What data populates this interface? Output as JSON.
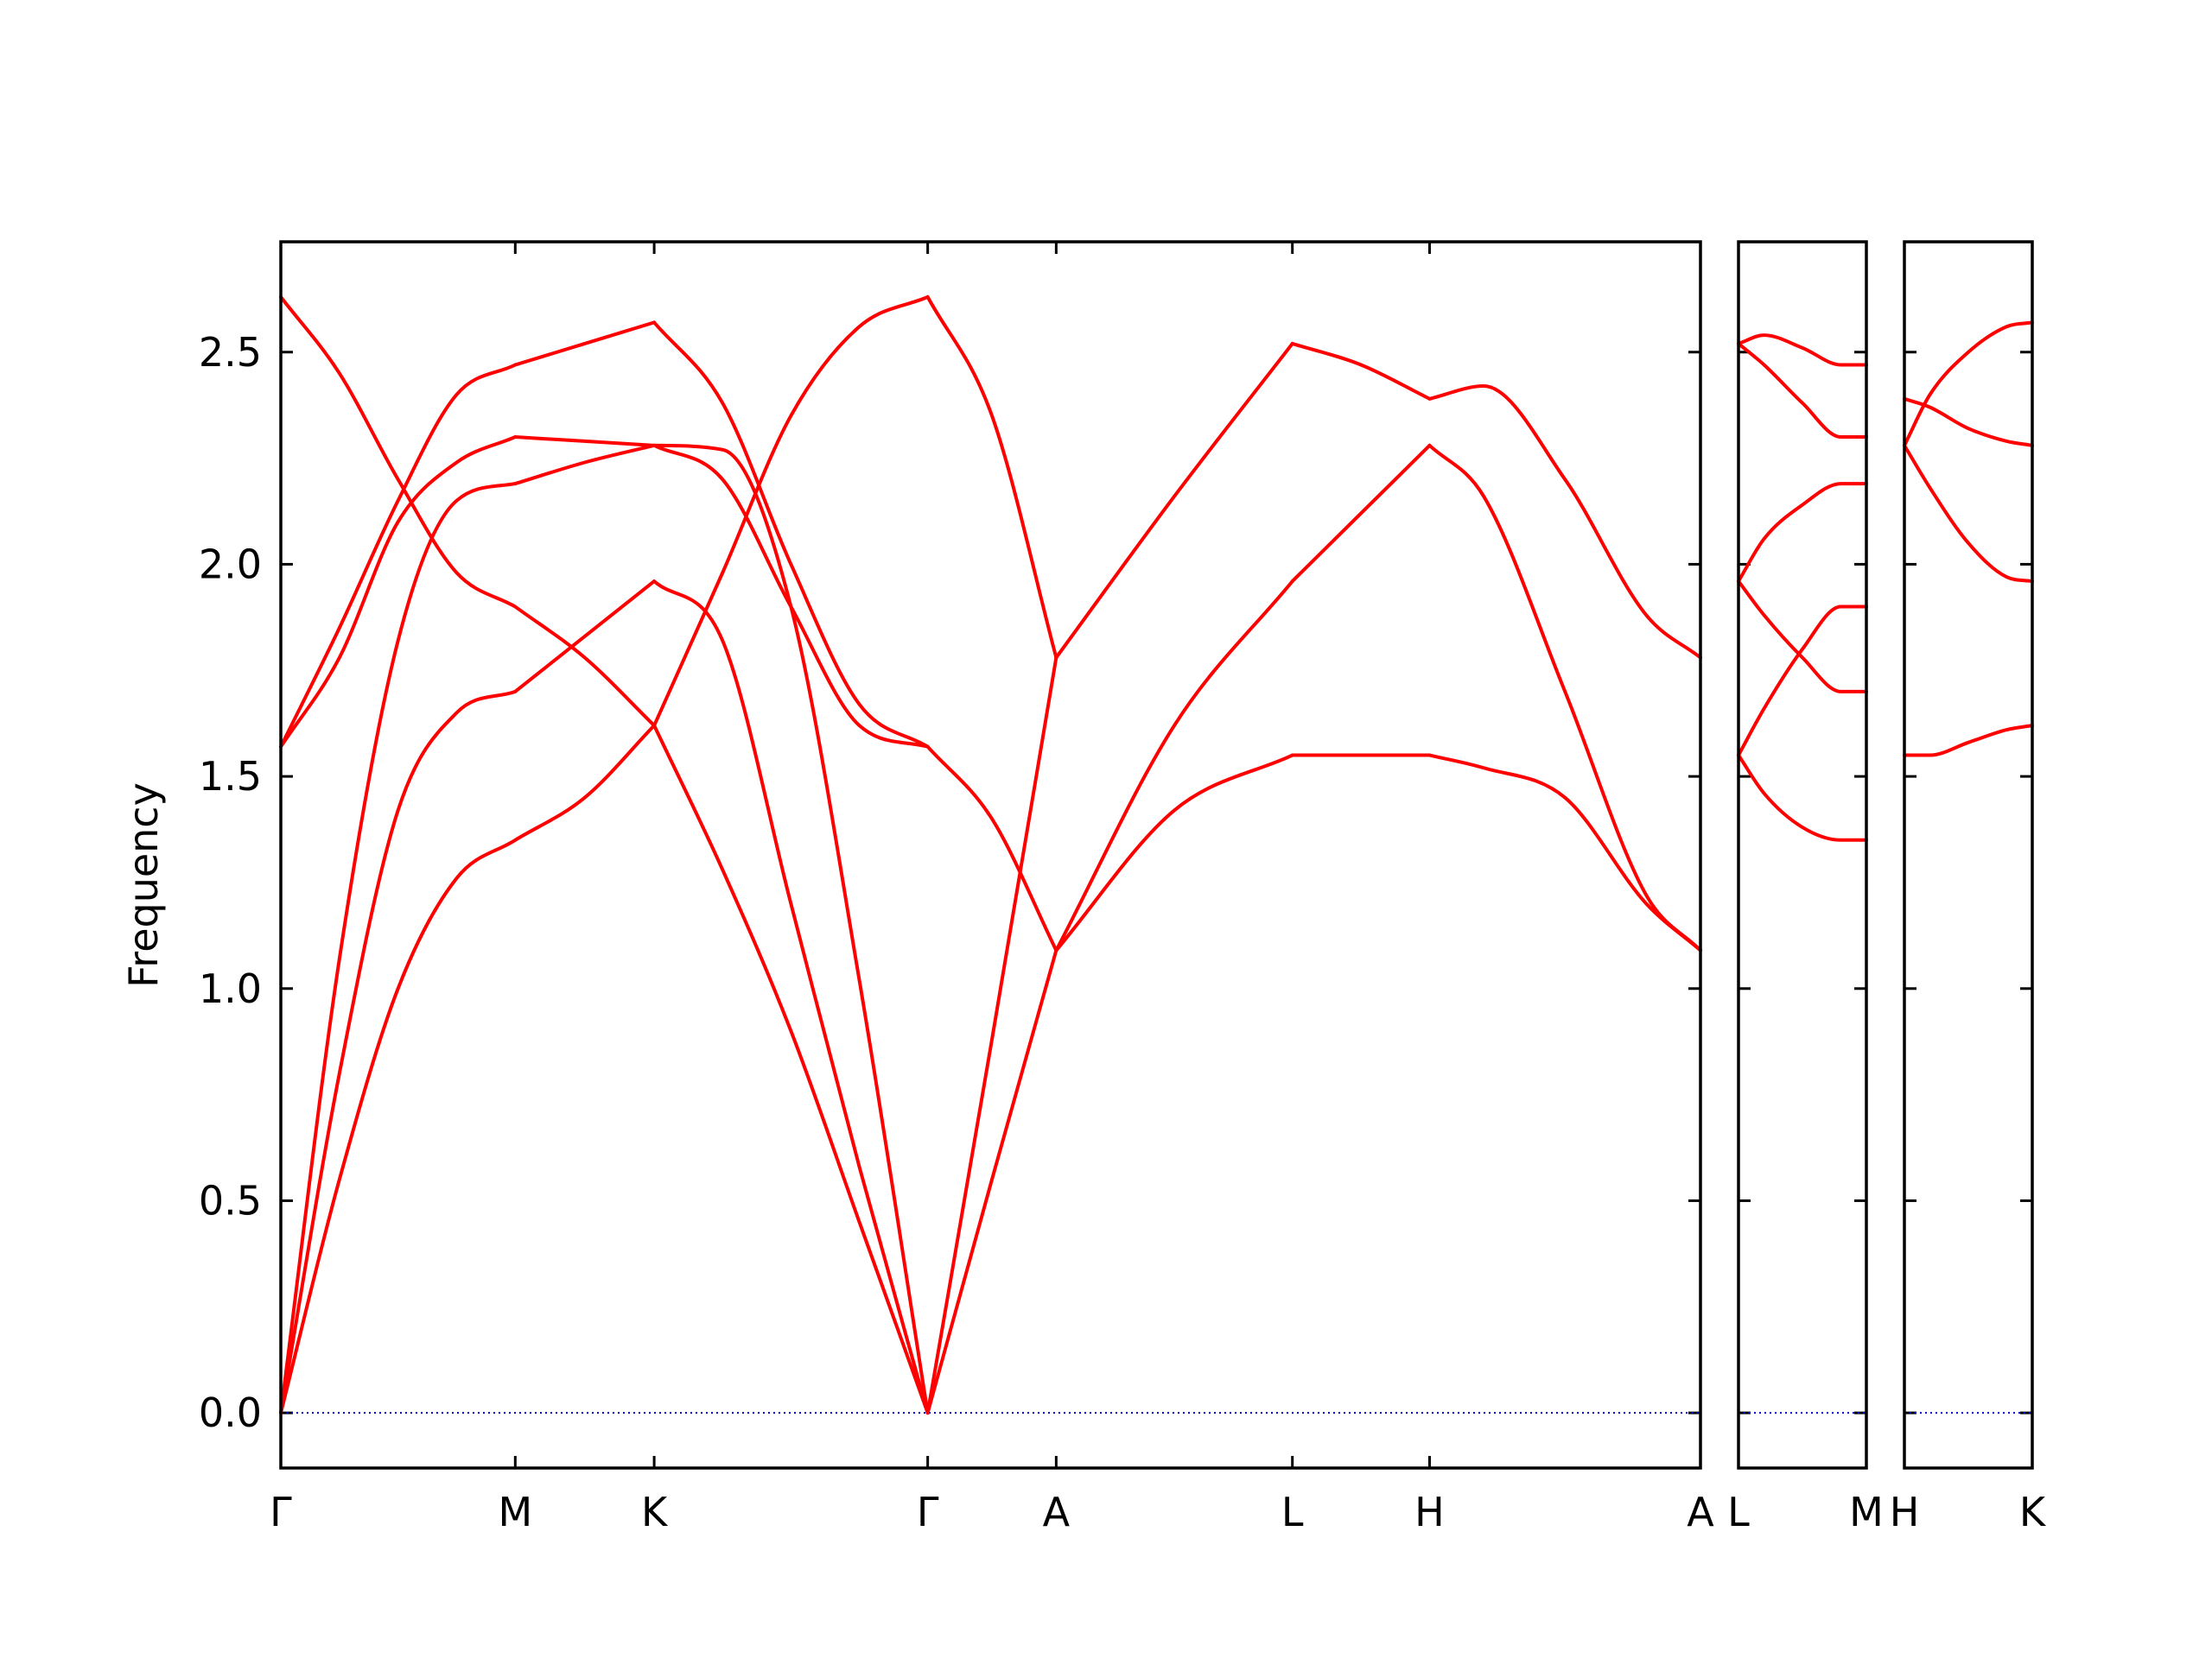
{
  "chart_data": {
    "type": "line",
    "title": "",
    "xlabel": "",
    "ylabel": "Frequency",
    "ylim": [
      -0.13,
      2.76
    ],
    "yticks": [
      "0.0",
      "0.5",
      "1.0",
      "1.5",
      "2.0",
      "2.5"
    ],
    "line_color": "#ff0000",
    "zero_line_color": "#0000cc",
    "grid": false,
    "panels": [
      {
        "labels": [
          "Γ",
          "M",
          "K",
          "Γ",
          "A",
          "L",
          "H",
          "A"
        ],
        "segments": [
          {
            "from": "Γ",
            "to": "M",
            "x": [
              0,
              0.25,
              0.5,
              0.75,
              1
            ],
            "bands": [
              [
                0,
                0.55,
                1.0,
                1.26,
                1.35
              ],
              [
                0,
                0.8,
                1.42,
                1.65,
                1.7
              ],
              [
                0,
                1.07,
                1.82,
                2.15,
                2.19
              ],
              [
                1.57,
                1.78,
                2.1,
                2.24,
                2.3
              ],
              [
                1.57,
                1.85,
                2.15,
                2.4,
                2.47
              ],
              [
                2.63,
                2.45,
                2.2,
                1.98,
                1.9
              ]
            ]
          },
          {
            "from": "M",
            "to": "K",
            "x": [
              0,
              0.5,
              1
            ],
            "bands": [
              [
                1.35,
                1.45,
                1.62
              ],
              [
                1.7,
                1.83,
                1.96
              ],
              [
                2.19,
                2.24,
                2.28
              ],
              [
                2.3,
                2.29,
                2.28
              ],
              [
                2.47,
                2.52,
                2.57
              ],
              [
                1.9,
                1.78,
                1.62
              ]
            ]
          },
          {
            "from": "K",
            "to": "Γ",
            "x": [
              0,
              0.25,
              0.5,
              0.75,
              1
            ],
            "bands": [
              [
                1.62,
                1.98,
                2.35,
                2.56,
                2.63
              ],
              [
                1.96,
                1.82,
                1.2,
                0.58,
                0
              ],
              [
                2.28,
                2.27,
                1.9,
                1.02,
                0
              ],
              [
                2.28,
                2.2,
                1.9,
                1.62,
                1.57
              ],
              [
                2.57,
                2.38,
                2.0,
                1.67,
                1.57
              ],
              [
                1.62,
                1.28,
                0.9,
                0.45,
                0
              ]
            ]
          },
          {
            "from": "Γ",
            "to": "A",
            "x": [
              0,
              0.5,
              1
            ],
            "bands": [
              [
                2.63,
                2.35,
                1.78
              ],
              [
                0,
                0.88,
                1.78
              ],
              [
                0,
                0.55,
                1.09
              ],
              [
                1.57,
                1.4,
                1.09
              ]
            ]
          },
          {
            "from": "A",
            "to": "L",
            "x": [
              0,
              0.5,
              1
            ],
            "bands": [
              [
                1.78,
                2.16,
                2.52
              ],
              [
                1.09,
                1.62,
                1.96
              ],
              [
                1.09,
                1.42,
                1.55
              ]
            ]
          },
          {
            "from": "L",
            "to": "H",
            "x": [
              0,
              0.5,
              1
            ],
            "bands": [
              [
                2.52,
                2.47,
                2.39
              ],
              [
                1.96,
                2.12,
                2.28
              ],
              [
                1.55,
                1.55,
                1.55
              ]
            ]
          },
          {
            "from": "H",
            "to": "A",
            "x": [
              0,
              0.2,
              0.5,
              0.8,
              1
            ],
            "bands": [
              [
                2.39,
                2.42,
                2.2,
                1.88,
                1.78
              ],
              [
                2.28,
                2.16,
                1.7,
                1.22,
                1.09
              ],
              [
                1.55,
                1.52,
                1.45,
                1.2,
                1.09
              ]
            ]
          }
        ]
      },
      {
        "labels": [
          "L",
          "M"
        ],
        "segments": [
          {
            "from": "L",
            "to": "M",
            "x": [
              0,
              0.2,
              0.5,
              0.8,
              1
            ],
            "bands": [
              [
                2.52,
                2.54,
                2.51,
                2.47,
                2.47
              ],
              [
                2.52,
                2.47,
                2.38,
                2.3,
                2.3
              ],
              [
                1.96,
                2.06,
                2.14,
                2.19,
                2.19
              ],
              [
                1.96,
                1.88,
                1.78,
                1.7,
                1.7
              ],
              [
                1.55,
                1.66,
                1.8,
                1.9,
                1.9
              ],
              [
                1.55,
                1.46,
                1.38,
                1.35,
                1.35
              ]
            ]
          }
        ]
      },
      {
        "labels": [
          "H",
          "K"
        ],
        "segments": [
          {
            "from": "H",
            "to": "K",
            "x": [
              0,
              0.2,
              0.5,
              0.8,
              1
            ],
            "bands": [
              [
                2.28,
                2.4,
                2.5,
                2.56,
                2.57
              ],
              [
                2.39,
                2.37,
                2.32,
                2.29,
                2.28
              ],
              [
                2.28,
                2.18,
                2.05,
                1.97,
                1.96
              ],
              [
                1.55,
                1.55,
                1.58,
                1.61,
                1.62
              ]
            ]
          }
        ]
      }
    ]
  }
}
